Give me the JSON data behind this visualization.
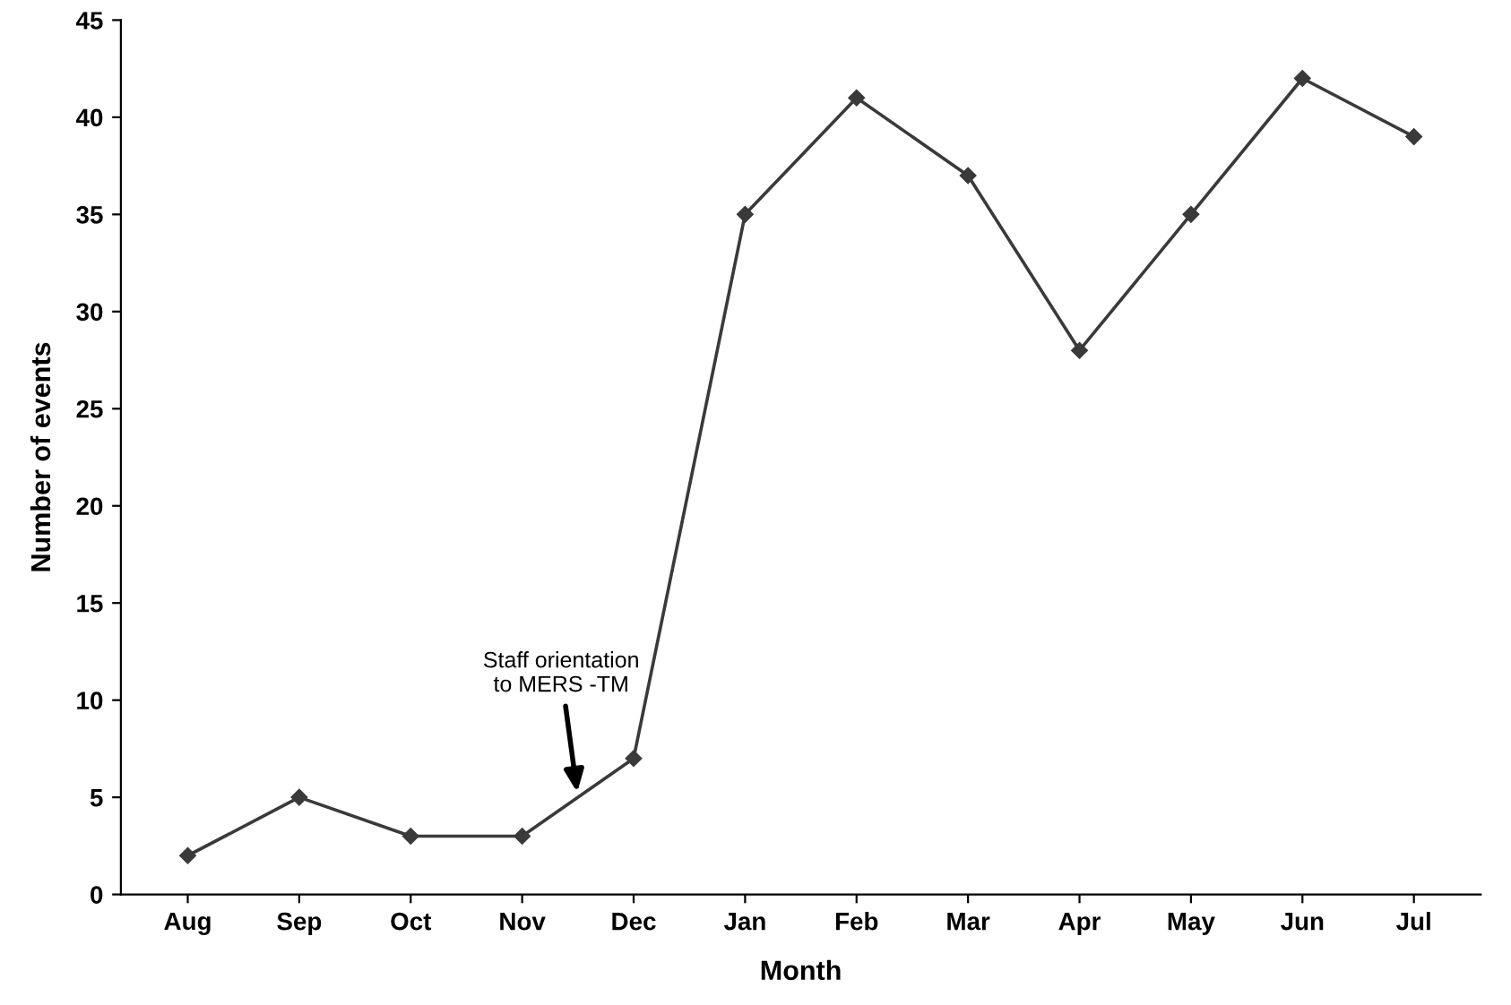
{
  "chart_data": {
    "type": "line",
    "xlabel": "Month",
    "ylabel": "Number of events",
    "categories": [
      "Aug",
      "Sep",
      "Oct",
      "Nov",
      "Dec",
      "Jan",
      "Feb",
      "Mar",
      "Apr",
      "May",
      "Jun",
      "Jul"
    ],
    "series": [
      {
        "color": "#3a3a3a",
        "values": [
          2,
          5,
          3,
          3,
          7,
          35,
          41,
          37,
          28,
          35,
          42,
          39
        ]
      }
    ],
    "ylim": [
      0,
      45
    ],
    "yticks": [
      0,
      5,
      10,
      15,
      20,
      25,
      30,
      35,
      40,
      45
    ],
    "marker": "diamond",
    "line_style": "solid",
    "grid": false,
    "legend": false,
    "annotations": [
      "Staff orientation\nto MERS -TM"
    ]
  }
}
